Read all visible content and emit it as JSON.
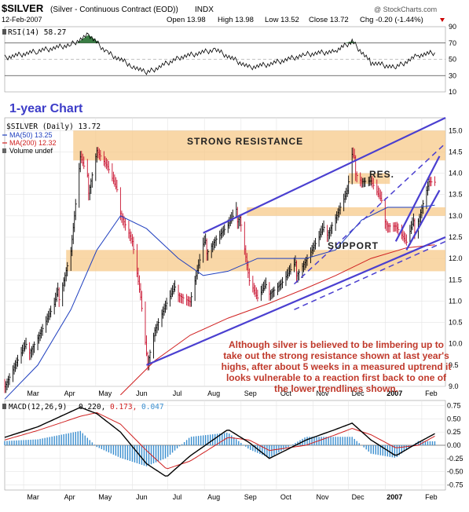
{
  "header": {
    "symbol": "$SILVER",
    "name": "(Silver - Continuous Contract (EOD))",
    "exchange": "INDX",
    "source": "@ StockCharts.com",
    "date": "12-Feb-2007",
    "open": "Open 13.98",
    "high": "High 13.98",
    "low": "Low 13.52",
    "close": "Close 13.72",
    "chg": "Chg -0.20 (-1.44%)",
    "chg_icon": "down-triangle-icon"
  },
  "rsi_panel": {
    "label": "RSI(14) 58.27",
    "ticks": [
      "90",
      "70",
      "50",
      "30",
      "10"
    ]
  },
  "price_panel": {
    "chart_title": "1-year Chart",
    "legend": {
      "main": "$SILVER (Daily) 13.72",
      "ma50": "MA(50) 13.25",
      "ma200": "MA(200) 12.32",
      "volume": "Volume undef"
    },
    "ticks": [
      "15.0",
      "14.5",
      "14.0",
      "13.5",
      "13.0",
      "12.5",
      "12.0",
      "11.5",
      "11.0",
      "10.5",
      "10.0",
      "9.5",
      "9.0"
    ],
    "labels": {
      "strong_resistance": "STRONG RESISTANCE",
      "res": "RES.",
      "support": "SUPPORT"
    },
    "annotation": "Although silver is believed to be limbering up to take out the strong resistance shown at last year's highs, after about 5 weeks in a measured uptrend it looks vulnerable to a reaction first back to one of the lower trendlines shown.",
    "months": [
      "Mar",
      "Apr",
      "May",
      "Jun",
      "Jul",
      "Aug",
      "Sep",
      "Oct",
      "Nov",
      "Dec",
      "2007",
      "Feb"
    ]
  },
  "macd_panel": {
    "label": "MACD(12,26,9)",
    "macd": "0.220,",
    "signal": "0.173,",
    "hist": "0.047",
    "ticks": [
      "0.75",
      "0.50",
      "0.25",
      "0.00",
      "-0.25",
      "-0.50",
      "-0.75"
    ],
    "months": [
      "Mar",
      "Apr",
      "May",
      "Jun",
      "Jul",
      "Aug",
      "Sep",
      "Oct",
      "Nov",
      "Dec",
      "2007",
      "Feb"
    ]
  },
  "colors": {
    "price": "#000000",
    "down_bar": "#c8102e",
    "ma50": "#1f3fbf",
    "ma200": "#d02020",
    "trendline": "#4a3fd0",
    "zone": "#f7c98a",
    "annotation": "#c0392b",
    "macd_hist": "#3a8ecf",
    "rsi_fill": "#3a7d44"
  },
  "chart_data": {
    "type": "line",
    "series": [
      {
        "name": "$SILVER",
        "x": [
          "2006-02-13",
          "2006-02-27",
          "2006-03-13",
          "2006-03-27",
          "2006-04-10",
          "2006-04-18",
          "2006-04-25",
          "2006-05-02",
          "2006-05-11",
          "2006-05-22",
          "2006-06-01",
          "2006-06-08",
          "2006-06-13",
          "2006-06-20",
          "2006-06-30",
          "2006-07-10",
          "2006-07-20",
          "2006-07-31",
          "2006-08-10",
          "2006-08-21",
          "2006-08-31",
          "2006-09-08",
          "2006-09-15",
          "2006-09-25",
          "2006-10-05",
          "2006-10-16",
          "2006-10-26",
          "2006-11-06",
          "2006-11-20",
          "2006-11-30",
          "2006-12-04",
          "2006-12-12",
          "2006-12-20",
          "2007-01-03",
          "2007-01-10",
          "2007-01-19",
          "2007-01-29",
          "2007-02-07",
          "2007-02-12"
        ],
        "values": [
          9.1,
          9.7,
          10.2,
          10.8,
          12.2,
          14.3,
          13.7,
          14.6,
          14.1,
          13.2,
          12.4,
          11.0,
          9.6,
          10.4,
          10.9,
          11.3,
          11.0,
          12.2,
          12.5,
          12.7,
          13.1,
          11.5,
          11.0,
          11.3,
          11.4,
          11.7,
          12.0,
          12.4,
          13.0,
          13.5,
          14.3,
          13.9,
          13.8,
          12.9,
          12.8,
          12.3,
          13.0,
          13.8,
          13.72
        ]
      },
      {
        "name": "MA(50)",
        "x": [
          "2006-02-13",
          "2006-03-13",
          "2006-04-10",
          "2006-05-02",
          "2006-05-22",
          "2006-06-13",
          "2006-07-10",
          "2006-07-31",
          "2006-08-21",
          "2006-09-15",
          "2006-10-05",
          "2006-10-26",
          "2006-11-20",
          "2006-12-12",
          "2007-01-03",
          "2007-01-29",
          "2007-02-12"
        ],
        "values": [
          8.7,
          9.5,
          10.8,
          12.2,
          13.0,
          12.7,
          12.0,
          11.6,
          11.7,
          12.0,
          12.0,
          12.0,
          12.2,
          12.9,
          13.2,
          13.2,
          13.25
        ]
      },
      {
        "name": "MA(200)",
        "x": [
          "2006-05-22",
          "2006-06-20",
          "2006-07-20",
          "2006-08-21",
          "2006-09-25",
          "2006-10-26",
          "2006-11-20",
          "2006-12-20",
          "2007-01-19",
          "2007-02-12"
        ],
        "values": [
          8.8,
          9.6,
          10.2,
          10.6,
          10.95,
          11.3,
          11.6,
          12.0,
          12.25,
          12.32
        ]
      }
    ],
    "zones": [
      {
        "name": "STRONG RESISTANCE",
        "y_range": [
          14.3,
          15.0
        ]
      },
      {
        "name": "RES.",
        "y_range": [
          13.75,
          14.0
        ]
      },
      {
        "name": "",
        "y_range": [
          13.0,
          13.2
        ]
      },
      {
        "name": "SUPPORT",
        "y_range": [
          11.7,
          12.2
        ]
      }
    ],
    "trendlines": [
      {
        "name": "channel-upper",
        "from": [
          "2006-07-31",
          12.6
        ],
        "to": [
          "2007-02-21",
          15.3
        ]
      },
      {
        "name": "channel-lower",
        "from": [
          "2006-06-13",
          9.5
        ],
        "to": [
          "2007-02-21",
          12.5
        ]
      },
      {
        "name": "dashed-upper",
        "from": [
          "2006-10-16",
          11.4
        ],
        "to": [
          "2007-02-21",
          14.7
        ]
      },
      {
        "name": "dashed-lower",
        "from": [
          "2006-10-16",
          10.8
        ],
        "to": [
          "2007-02-21",
          12.4
        ]
      },
      {
        "name": "short-upper",
        "from": [
          "2007-01-10",
          12.4
        ],
        "to": [
          "2007-02-16",
          14.4
        ]
      },
      {
        "name": "short-lower",
        "from": [
          "2007-01-19",
          12.2
        ],
        "to": [
          "2007-02-16",
          13.6
        ]
      }
    ],
    "ylim": [
      9.0,
      15.3
    ],
    "rsi": {
      "x": [
        "2006-02-13",
        "2006-03-13",
        "2006-04-10",
        "2006-04-25",
        "2006-05-11",
        "2006-06-01",
        "2006-06-13",
        "2006-07-10",
        "2006-08-10",
        "2006-09-08",
        "2006-09-25",
        "2006-10-26",
        "2006-11-20",
        "2006-12-04",
        "2006-12-20",
        "2007-01-10",
        "2007-01-29",
        "2007-02-12"
      ],
      "values": [
        52,
        60,
        68,
        80,
        58,
        42,
        33,
        52,
        62,
        40,
        44,
        56,
        60,
        72,
        46,
        40,
        55,
        58.27
      ],
      "ylim": [
        10,
        90
      ]
    },
    "macd": {
      "x": [
        "2006-02-13",
        "2006-03-13",
        "2006-04-18",
        "2006-05-02",
        "2006-05-22",
        "2006-06-13",
        "2006-06-30",
        "2006-07-20",
        "2006-08-21",
        "2006-09-08",
        "2006-09-25",
        "2006-10-26",
        "2006-11-20",
        "2006-12-04",
        "2006-12-20",
        "2007-01-10",
        "2007-01-29",
        "2007-02-12"
      ],
      "macd": [
        0.15,
        0.35,
        0.72,
        0.6,
        0.25,
        -0.35,
        -0.6,
        -0.2,
        0.3,
        0.05,
        -0.25,
        0.1,
        0.3,
        0.42,
        0.1,
        -0.2,
        0.05,
        0.22
      ],
      "signal": [
        0.1,
        0.28,
        0.55,
        0.62,
        0.4,
        -0.1,
        -0.45,
        -0.3,
        0.15,
        0.1,
        -0.1,
        0.0,
        0.2,
        0.32,
        0.2,
        -0.05,
        0.0,
        0.173
      ],
      "ylim": [
        -0.85,
        0.85
      ]
    }
  }
}
